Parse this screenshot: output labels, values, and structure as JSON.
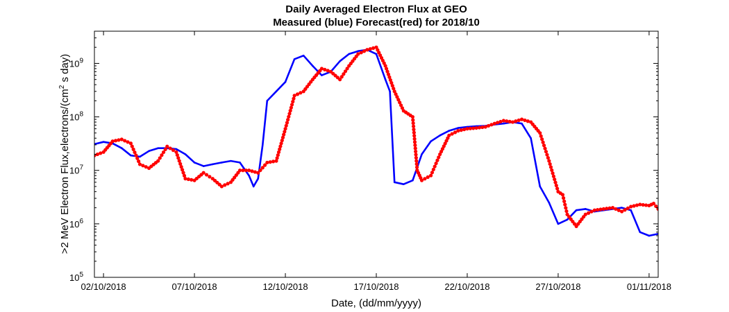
{
  "chart_data": {
    "type": "line",
    "title_line1": "Daily Averaged Electron Flux at GEO",
    "title_line2": "Measured (blue) Forecast(red) for 2018/10",
    "xlabel": "Date, (dd/mm/yyyy)",
    "ylabel": ">2 MeV Electron Flux,electrons/(cm",
    "ylabel_sup": "2",
    "ylabel_tail": " s day)",
    "xlim": [
      "2018-10-01T12:00",
      "2018-11-01T12:00"
    ],
    "ylim": [
      100000,
      4000000000
    ],
    "yscale": "log",
    "xticks": [
      {
        "date": "2018-10-02",
        "label": "02/10/2018"
      },
      {
        "date": "2018-10-07",
        "label": "07/10/2018"
      },
      {
        "date": "2018-10-12",
        "label": "12/10/2018"
      },
      {
        "date": "2018-10-17",
        "label": "17/10/2018"
      },
      {
        "date": "2018-10-22",
        "label": "22/10/2018"
      },
      {
        "date": "2018-10-27",
        "label": "27/10/2018"
      },
      {
        "date": "2018-11-01",
        "label": "01/11/2018"
      }
    ],
    "yticks": [
      {
        "value": 100000,
        "base": "10",
        "exp": "5"
      },
      {
        "value": 1000000,
        "base": "10",
        "exp": "6"
      },
      {
        "value": 10000000,
        "base": "10",
        "exp": "7"
      },
      {
        "value": 100000000,
        "base": "10",
        "exp": "8"
      },
      {
        "value": 1000000000,
        "base": "10",
        "exp": "9"
      }
    ],
    "series": [
      {
        "style": "line",
        "color": "#0000ff",
        "points": [
          [
            "2018-10-01T12:00",
            31000000
          ],
          [
            "2018-10-02T00:00",
            34000000
          ],
          [
            "2018-10-02T12:00",
            32000000
          ],
          [
            "2018-10-03T00:00",
            26000000
          ],
          [
            "2018-10-03T12:00",
            19000000
          ],
          [
            "2018-10-04T00:00",
            18000000
          ],
          [
            "2018-10-04T12:00",
            23000000
          ],
          [
            "2018-10-05T00:00",
            26000000
          ],
          [
            "2018-10-05T12:00",
            26000000
          ],
          [
            "2018-10-06T00:00",
            25000000
          ],
          [
            "2018-10-06T12:00",
            20000000
          ],
          [
            "2018-10-07T00:00",
            14000000
          ],
          [
            "2018-10-07T12:00",
            12000000
          ],
          [
            "2018-10-08T00:00",
            13000000
          ],
          [
            "2018-10-08T12:00",
            14000000
          ],
          [
            "2018-10-09T00:00",
            15000000
          ],
          [
            "2018-10-09T12:00",
            14000000
          ],
          [
            "2018-10-10T00:00",
            8000000
          ],
          [
            "2018-10-10T06:00",
            5000000
          ],
          [
            "2018-10-10T12:00",
            7000000
          ],
          [
            "2018-10-10T18:00",
            30000000
          ],
          [
            "2018-10-11T00:00",
            200000000
          ],
          [
            "2018-10-11T12:00",
            300000000
          ],
          [
            "2018-10-12T00:00",
            450000000
          ],
          [
            "2018-10-12T12:00",
            1200000000
          ],
          [
            "2018-10-13T00:00",
            1400000000
          ],
          [
            "2018-10-13T12:00",
            900000000
          ],
          [
            "2018-10-14T00:00",
            600000000
          ],
          [
            "2018-10-14T12:00",
            700000000
          ],
          [
            "2018-10-15T00:00",
            1100000000
          ],
          [
            "2018-10-15T12:00",
            1500000000
          ],
          [
            "2018-10-16T00:00",
            1700000000
          ],
          [
            "2018-10-16T12:00",
            1800000000
          ],
          [
            "2018-10-17T00:00",
            1500000000
          ],
          [
            "2018-10-17T12:00",
            500000000
          ],
          [
            "2018-10-17T18:00",
            300000000
          ],
          [
            "2018-10-18T00:00",
            6000000
          ],
          [
            "2018-10-18T12:00",
            5500000
          ],
          [
            "2018-10-19T00:00",
            6500000
          ],
          [
            "2018-10-19T12:00",
            20000000
          ],
          [
            "2018-10-20T00:00",
            35000000
          ],
          [
            "2018-10-20T12:00",
            45000000
          ],
          [
            "2018-10-21T00:00",
            55000000
          ],
          [
            "2018-10-21T12:00",
            62000000
          ],
          [
            "2018-10-22T00:00",
            65000000
          ],
          [
            "2018-10-22T12:00",
            67000000
          ],
          [
            "2018-10-23T00:00",
            68000000
          ],
          [
            "2018-10-23T12:00",
            72000000
          ],
          [
            "2018-10-24T00:00",
            75000000
          ],
          [
            "2018-10-24T12:00",
            80000000
          ],
          [
            "2018-10-25T00:00",
            75000000
          ],
          [
            "2018-10-25T12:00",
            40000000
          ],
          [
            "2018-10-26T00:00",
            5000000
          ],
          [
            "2018-10-26T12:00",
            2500000
          ],
          [
            "2018-10-27T00:00",
            1000000
          ],
          [
            "2018-10-27T12:00",
            1200000
          ],
          [
            "2018-10-28T00:00",
            1800000
          ],
          [
            "2018-10-28T12:00",
            1900000
          ],
          [
            "2018-10-29T00:00",
            1700000
          ],
          [
            "2018-10-29T12:00",
            1800000
          ],
          [
            "2018-10-30T00:00",
            1900000
          ],
          [
            "2018-10-30T12:00",
            2000000
          ],
          [
            "2018-10-31T00:00",
            1800000
          ],
          [
            "2018-10-31T12:00",
            700000
          ],
          [
            "2018-11-01T00:00",
            600000
          ],
          [
            "2018-11-01T12:00",
            650000
          ]
        ]
      },
      {
        "style": "dots",
        "color": "#ff0000",
        "points": [
          [
            "2018-10-01T12:00",
            19000000
          ],
          [
            "2018-10-02T00:00",
            22000000
          ],
          [
            "2018-10-02T12:00",
            35000000
          ],
          [
            "2018-10-03T00:00",
            38000000
          ],
          [
            "2018-10-03T12:00",
            32000000
          ],
          [
            "2018-10-04T00:00",
            13000000
          ],
          [
            "2018-10-04T12:00",
            11000000
          ],
          [
            "2018-10-05T00:00",
            15000000
          ],
          [
            "2018-10-05T12:00",
            28000000
          ],
          [
            "2018-10-06T00:00",
            22000000
          ],
          [
            "2018-10-06T12:00",
            7000000
          ],
          [
            "2018-10-07T00:00",
            6500000
          ],
          [
            "2018-10-07T12:00",
            9000000
          ],
          [
            "2018-10-08T00:00",
            7000000
          ],
          [
            "2018-10-08T12:00",
            5000000
          ],
          [
            "2018-10-09T00:00",
            6000000
          ],
          [
            "2018-10-09T12:00",
            10000000
          ],
          [
            "2018-10-10T00:00",
            10000000
          ],
          [
            "2018-10-10T12:00",
            9000000
          ],
          [
            "2018-10-11T00:00",
            14000000
          ],
          [
            "2018-10-11T12:00",
            15000000
          ],
          [
            "2018-10-12T00:00",
            60000000
          ],
          [
            "2018-10-12T12:00",
            250000000
          ],
          [
            "2018-10-13T00:00",
            300000000
          ],
          [
            "2018-10-13T12:00",
            500000000
          ],
          [
            "2018-10-14T00:00",
            800000000
          ],
          [
            "2018-10-14T12:00",
            700000000
          ],
          [
            "2018-10-15T00:00",
            500000000
          ],
          [
            "2018-10-15T12:00",
            900000000
          ],
          [
            "2018-10-16T00:00",
            1500000000
          ],
          [
            "2018-10-16T12:00",
            1800000000
          ],
          [
            "2018-10-17T00:00",
            2000000000
          ],
          [
            "2018-10-17T12:00",
            900000000
          ],
          [
            "2018-10-18T00:00",
            300000000
          ],
          [
            "2018-10-18T12:00",
            130000000
          ],
          [
            "2018-10-19T00:00",
            100000000
          ],
          [
            "2018-10-19T06:00",
            10000000
          ],
          [
            "2018-10-19T12:00",
            6500000
          ],
          [
            "2018-10-20T00:00",
            8000000
          ],
          [
            "2018-10-20T12:00",
            20000000
          ],
          [
            "2018-10-21T00:00",
            45000000
          ],
          [
            "2018-10-21T12:00",
            55000000
          ],
          [
            "2018-10-22T00:00",
            60000000
          ],
          [
            "2018-10-22T12:00",
            62000000
          ],
          [
            "2018-10-23T00:00",
            65000000
          ],
          [
            "2018-10-23T12:00",
            75000000
          ],
          [
            "2018-10-24T00:00",
            85000000
          ],
          [
            "2018-10-24T12:00",
            80000000
          ],
          [
            "2018-10-25T00:00",
            90000000
          ],
          [
            "2018-10-25T12:00",
            80000000
          ],
          [
            "2018-10-26T00:00",
            50000000
          ],
          [
            "2018-10-26T12:00",
            15000000
          ],
          [
            "2018-10-27T00:00",
            4000000
          ],
          [
            "2018-10-27T06:00",
            3500000
          ],
          [
            "2018-10-27T12:00",
            1500000
          ],
          [
            "2018-10-28T00:00",
            900000
          ],
          [
            "2018-10-28T12:00",
            1500000
          ],
          [
            "2018-10-29T00:00",
            1800000
          ],
          [
            "2018-10-29T12:00",
            1900000
          ],
          [
            "2018-10-30T00:00",
            2000000
          ],
          [
            "2018-10-30T12:00",
            1700000
          ],
          [
            "2018-10-31T00:00",
            2100000
          ],
          [
            "2018-10-31T12:00",
            2300000
          ],
          [
            "2018-11-01T00:00",
            2200000
          ],
          [
            "2018-11-01T06:00",
            2400000
          ],
          [
            "2018-11-01T12:00",
            1900000
          ]
        ]
      }
    ]
  }
}
